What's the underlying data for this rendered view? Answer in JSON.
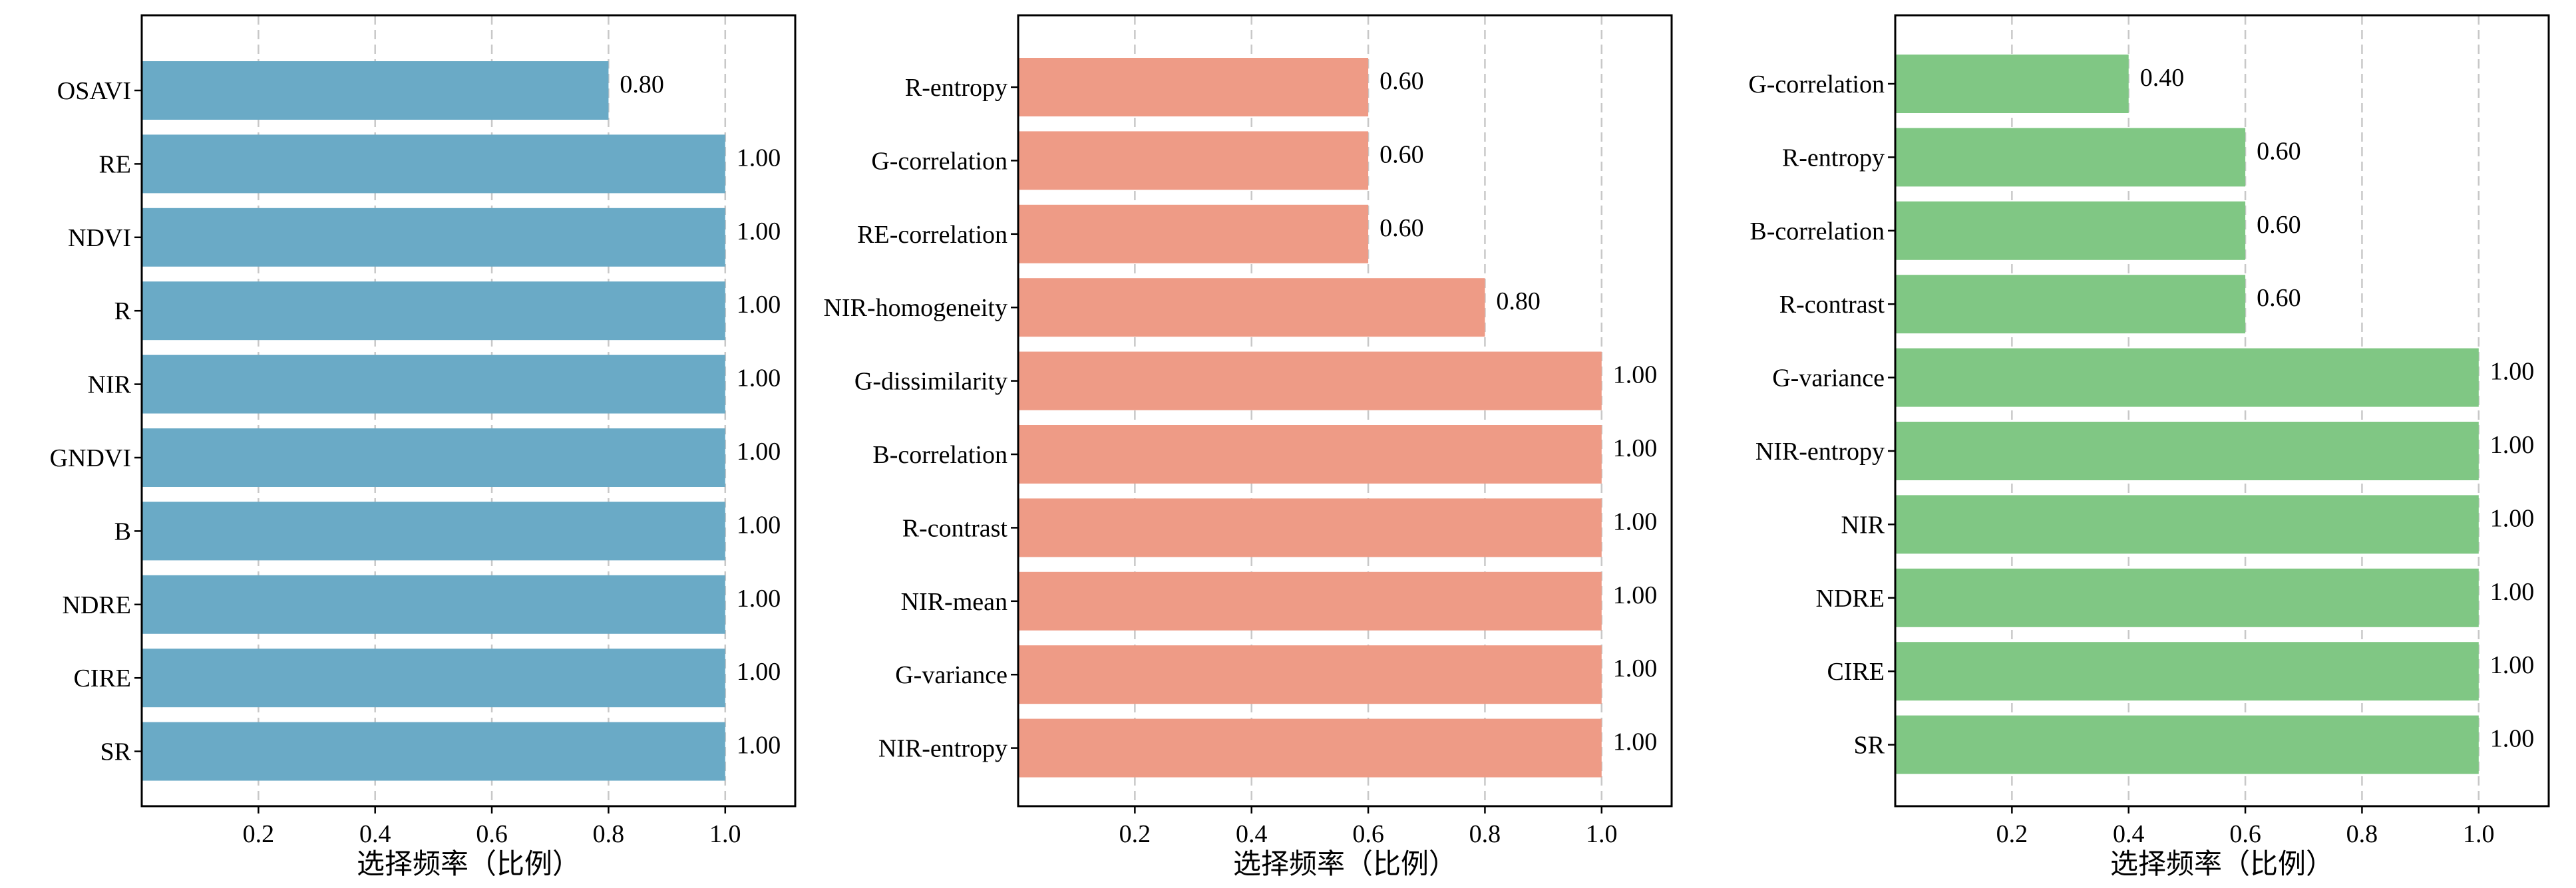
{
  "chart_data": [
    {
      "type": "bar",
      "orientation": "horizontal",
      "color": "#6aaac6",
      "categories": [
        "OSAVI",
        "RE",
        "NDVI",
        "R",
        "NIR",
        "GNDVI",
        "B",
        "NDRE",
        "CIRE",
        "SR"
      ],
      "values": [
        0.8,
        1.0,
        1.0,
        1.0,
        1.0,
        1.0,
        1.0,
        1.0,
        1.0,
        1.0
      ],
      "value_labels": [
        "0.80",
        "1.00",
        "1.00",
        "1.00",
        "1.00",
        "1.00",
        "1.00",
        "1.00",
        "1.00",
        "1.00"
      ],
      "xlabel": "选择频率（比例）",
      "xticks": [
        "0.2",
        "0.4",
        "0.6",
        "0.8",
        "1.0"
      ],
      "xlim": [
        0.0,
        1.12
      ],
      "grid": "x-dashed"
    },
    {
      "type": "bar",
      "orientation": "horizontal",
      "color": "#ee9b86",
      "categories": [
        "R-entropy",
        "G-correlation",
        "RE-correlation",
        "NIR-homogeneity",
        "G-dissimilarity",
        "B-correlation",
        "R-contrast",
        "NIR-mean",
        "G-variance",
        "NIR-entropy"
      ],
      "values": [
        0.6,
        0.6,
        0.6,
        0.8,
        1.0,
        1.0,
        1.0,
        1.0,
        1.0,
        1.0
      ],
      "value_labels": [
        "0.60",
        "0.60",
        "0.60",
        "0.80",
        "1.00",
        "1.00",
        "1.00",
        "1.00",
        "1.00",
        "1.00"
      ],
      "xlabel": "选择频率（比例）",
      "xticks": [
        "0.2",
        "0.4",
        "0.6",
        "0.8",
        "1.0"
      ],
      "xlim": [
        0.0,
        1.12
      ],
      "grid": "x-dashed"
    },
    {
      "type": "bar",
      "orientation": "horizontal",
      "color": "#80c784",
      "categories": [
        "G-correlation",
        "R-entropy",
        "B-correlation",
        "R-contrast",
        "G-variance",
        "NIR-entropy",
        "NIR",
        "NDRE",
        "CIRE",
        "SR"
      ],
      "values": [
        0.4,
        0.6,
        0.6,
        0.6,
        1.0,
        1.0,
        1.0,
        1.0,
        1.0,
        1.0
      ],
      "value_labels": [
        "0.40",
        "0.60",
        "0.60",
        "0.60",
        "1.00",
        "1.00",
        "1.00",
        "1.00",
        "1.00",
        "1.00"
      ],
      "xlabel": "选择频率（比例）",
      "xticks": [
        "0.2",
        "0.4",
        "0.6",
        "0.8",
        "1.0"
      ],
      "xlim": [
        0.0,
        1.12
      ],
      "grid": "x-dashed"
    }
  ]
}
